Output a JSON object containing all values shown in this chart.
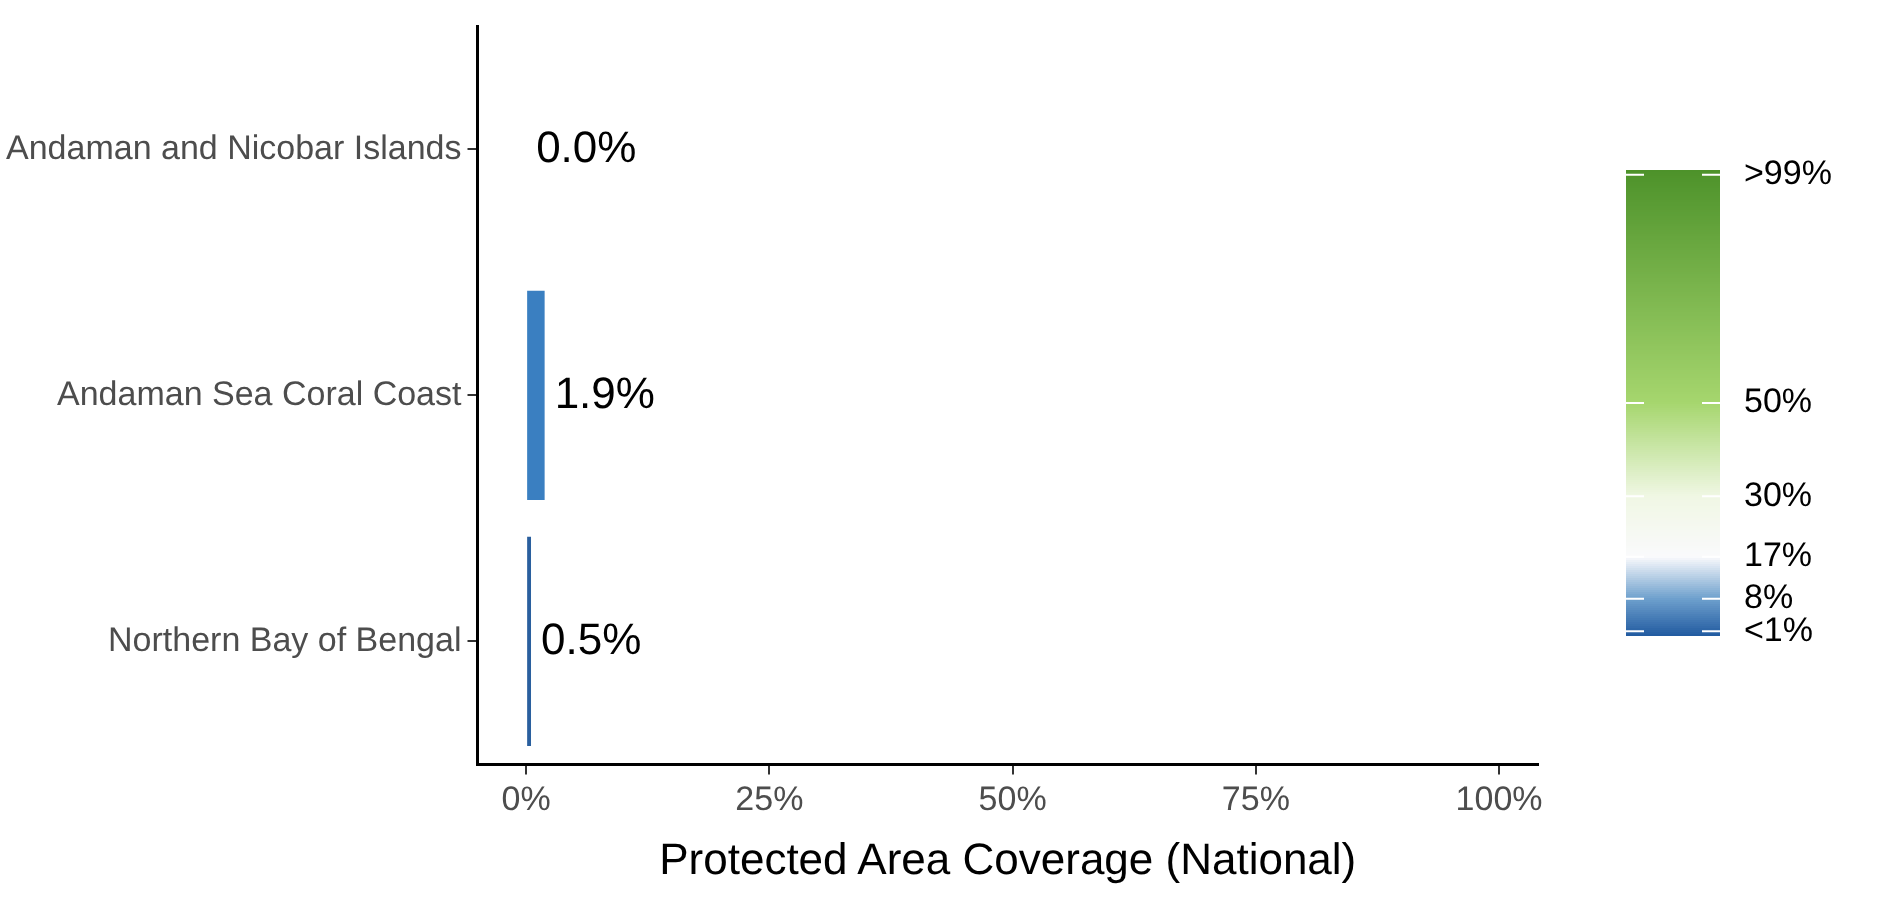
{
  "chart_data": {
    "type": "bar",
    "orientation": "horizontal",
    "xlabel": "Protected Area Coverage (National)",
    "categories": [
      "Andaman and Nicobar Islands",
      "Andaman Sea Coral Coast",
      "Northern Bay of Bengal"
    ],
    "values": [
      0,
      1.9,
      0.5
    ],
    "colors": [
      "#2166ac",
      "#3a7fc1",
      "#2a5f9e"
    ],
    "value_labels": [
      "0.0%",
      "1.9%",
      "0.5%"
    ],
    "xlim": [
      -5,
      104
    ],
    "xticks": [
      {
        "value": 0,
        "label": "0%"
      },
      {
        "value": 25,
        "label": "25%"
      },
      {
        "value": 50,
        "label": "50%"
      },
      {
        "value": 75,
        "label": "75%"
      },
      {
        "value": 100,
        "label": "100%"
      }
    ],
    "clim": [
      0,
      100
    ],
    "cticks": [
      {
        "value": 99,
        "label": ">99%"
      },
      {
        "value": 50,
        "label": "50%"
      },
      {
        "value": 30,
        "label": "30%"
      },
      {
        "value": 17,
        "label": "17%"
      },
      {
        "value": 8,
        "label": "8%"
      },
      {
        "value": 1,
        "label": "<1%"
      }
    ],
    "grid": false,
    "legend": false
  }
}
